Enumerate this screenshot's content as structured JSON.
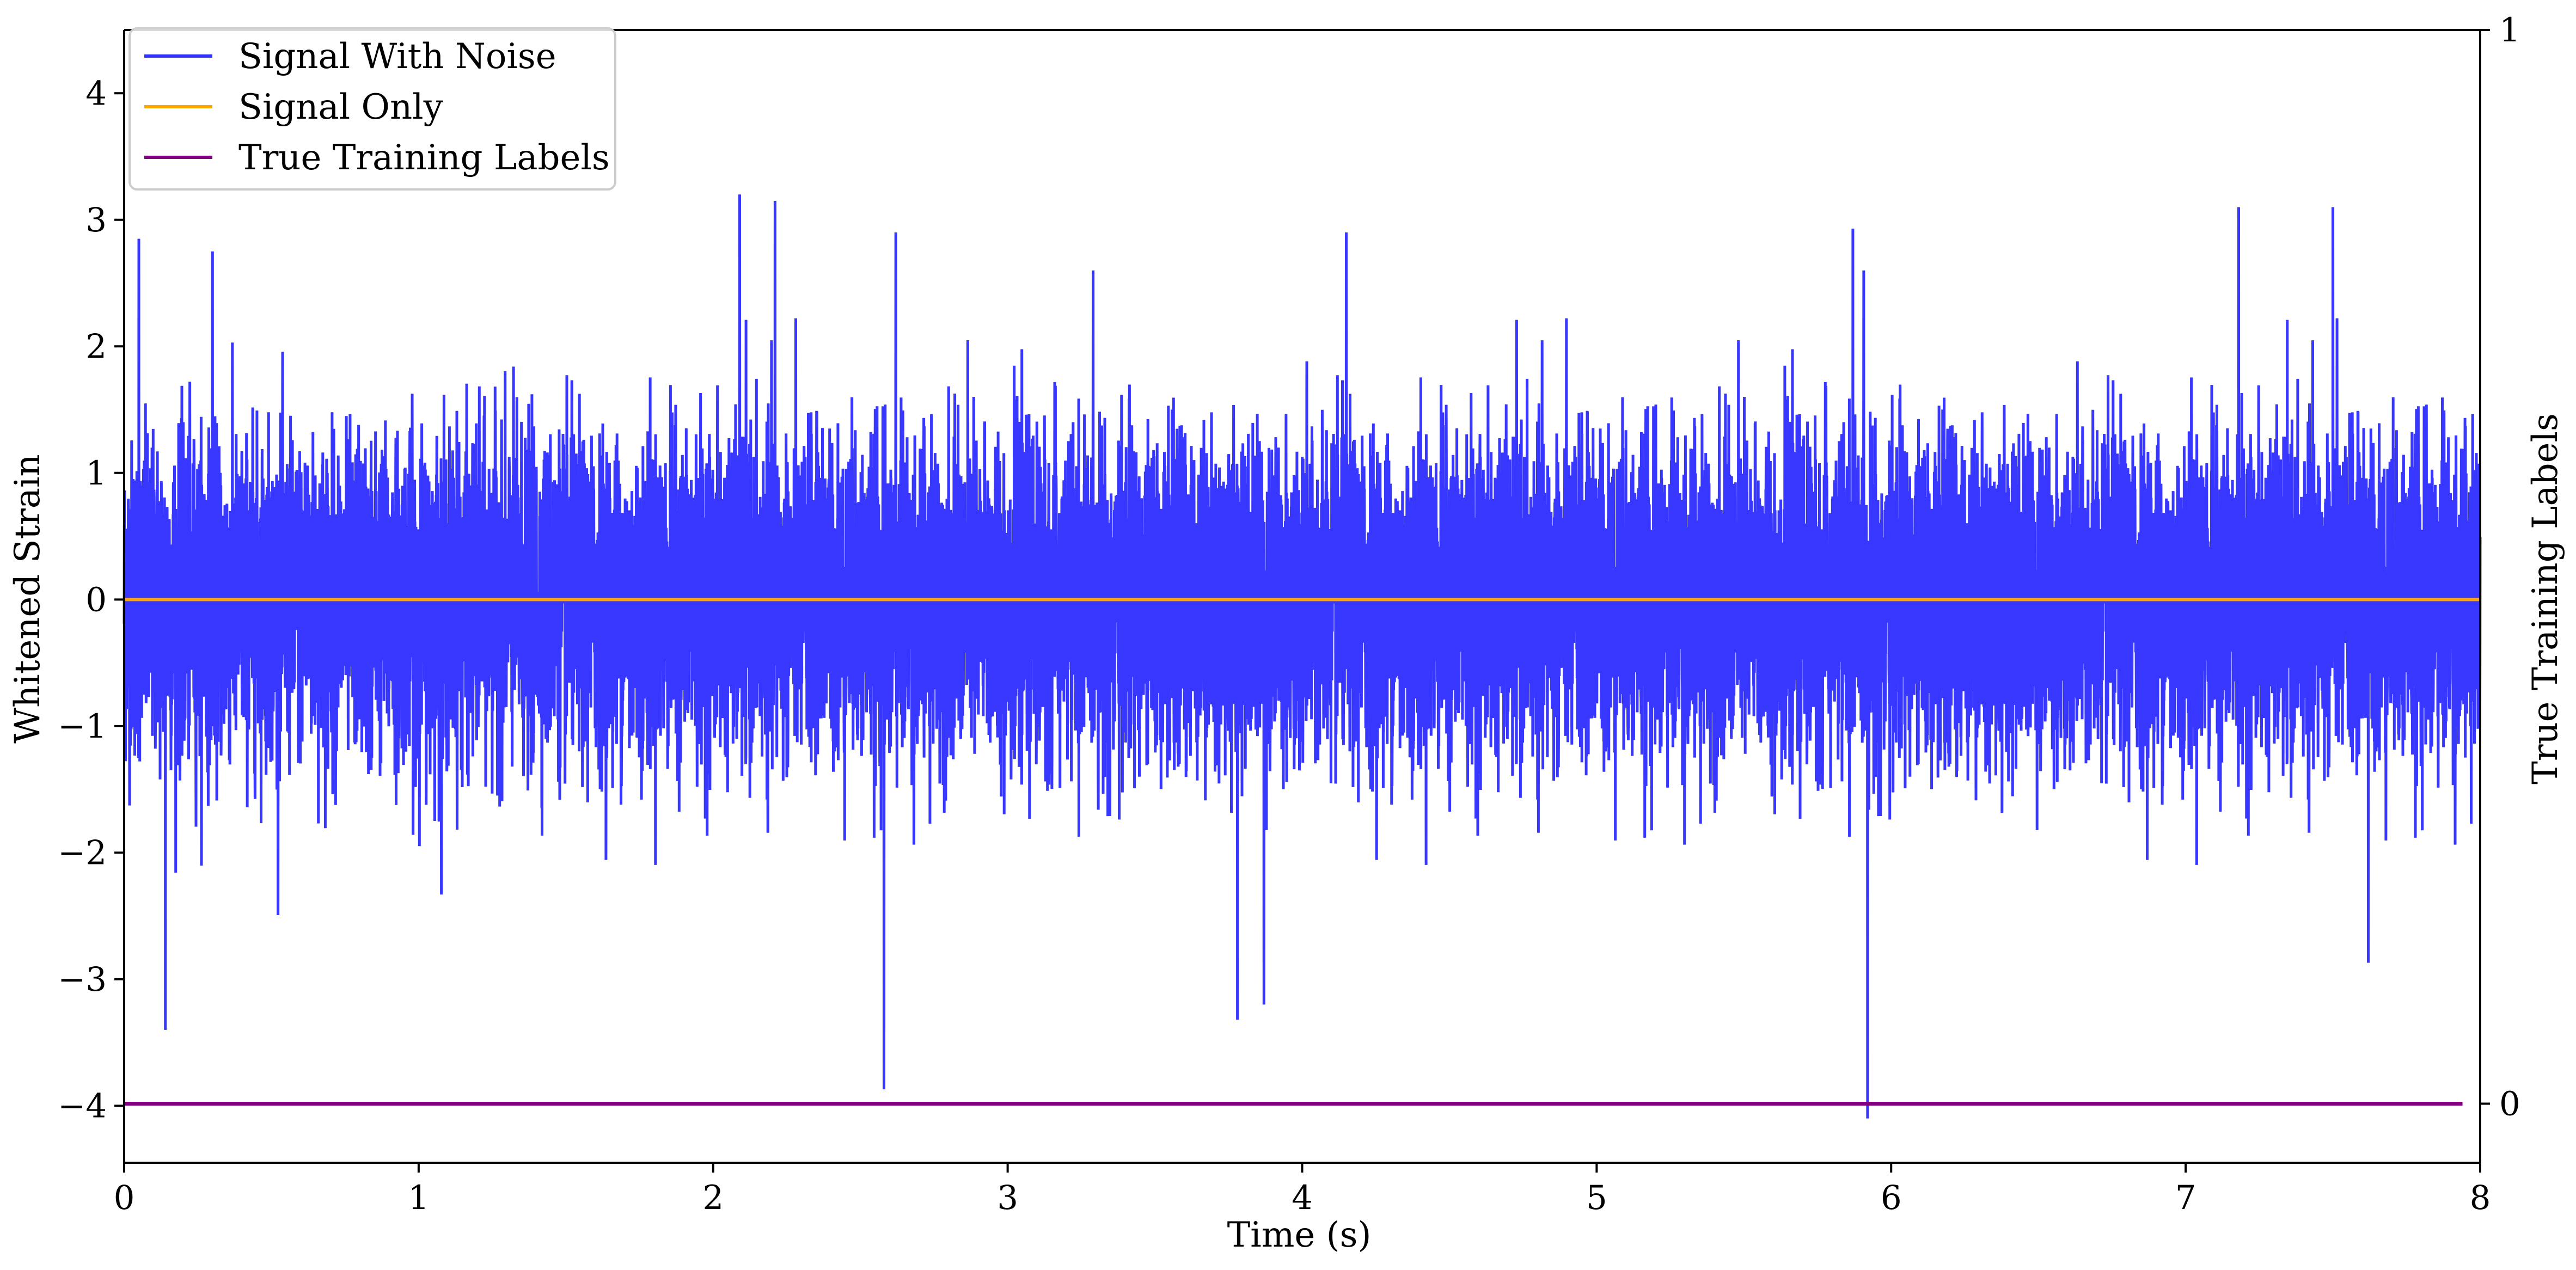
{
  "chart_data": {
    "type": "line",
    "title": "",
    "xlabel": "Time (s)",
    "ylabel": "Whitened Strain",
    "y2label": "True Training Labels",
    "xlim": [
      0,
      8
    ],
    "ylim": [
      -4.45,
      4.5
    ],
    "y2lim": [
      -0.055,
      1.0
    ],
    "xticks": [
      "0",
      "1",
      "2",
      "3",
      "4",
      "5",
      "6",
      "7",
      "8"
    ],
    "yticks": [
      "−4",
      "−3",
      "−2",
      "−1",
      "0",
      "1",
      "2",
      "3",
      "4"
    ],
    "y2ticks": [
      "0",
      "1"
    ],
    "legend_position": "upper-left",
    "grid": false,
    "series": [
      {
        "name": "Signal With Noise",
        "color": "#3333ff",
        "style": "dense-noise",
        "description_values": {
          "x_range": [
            0,
            8
          ],
          "typical_envelope": [
            -1.7,
            1.7
          ],
          "notable_peaks": [
            {
              "x": 0.05,
              "y": 2.85
            },
            {
              "x": 0.14,
              "y": -3.4
            },
            {
              "x": 0.3,
              "y": 2.75
            },
            {
              "x": 2.09,
              "y": 3.2
            },
            {
              "x": 2.21,
              "y": 3.15
            },
            {
              "x": 2.58,
              "y": -3.87
            },
            {
              "x": 2.62,
              "y": 2.9
            },
            {
              "x": 3.78,
              "y": -3.32
            },
            {
              "x": 3.87,
              "y": -3.2
            },
            {
              "x": 4.15,
              "y": 2.9
            },
            {
              "x": 5.87,
              "y": 2.93
            },
            {
              "x": 5.92,
              "y": -4.1
            },
            {
              "x": 7.18,
              "y": 3.1
            },
            {
              "x": 7.5,
              "y": 3.1
            },
            {
              "x": 7.62,
              "y": -2.87
            }
          ]
        }
      },
      {
        "name": "Signal Only",
        "color": "#ffa500",
        "x": [
          0,
          8
        ],
        "y": [
          0,
          0
        ]
      },
      {
        "name": "True Training Labels",
        "color": "#800080",
        "axis": "right",
        "x": [
          0,
          7.94
        ],
        "y": [
          0,
          0
        ]
      }
    ]
  }
}
